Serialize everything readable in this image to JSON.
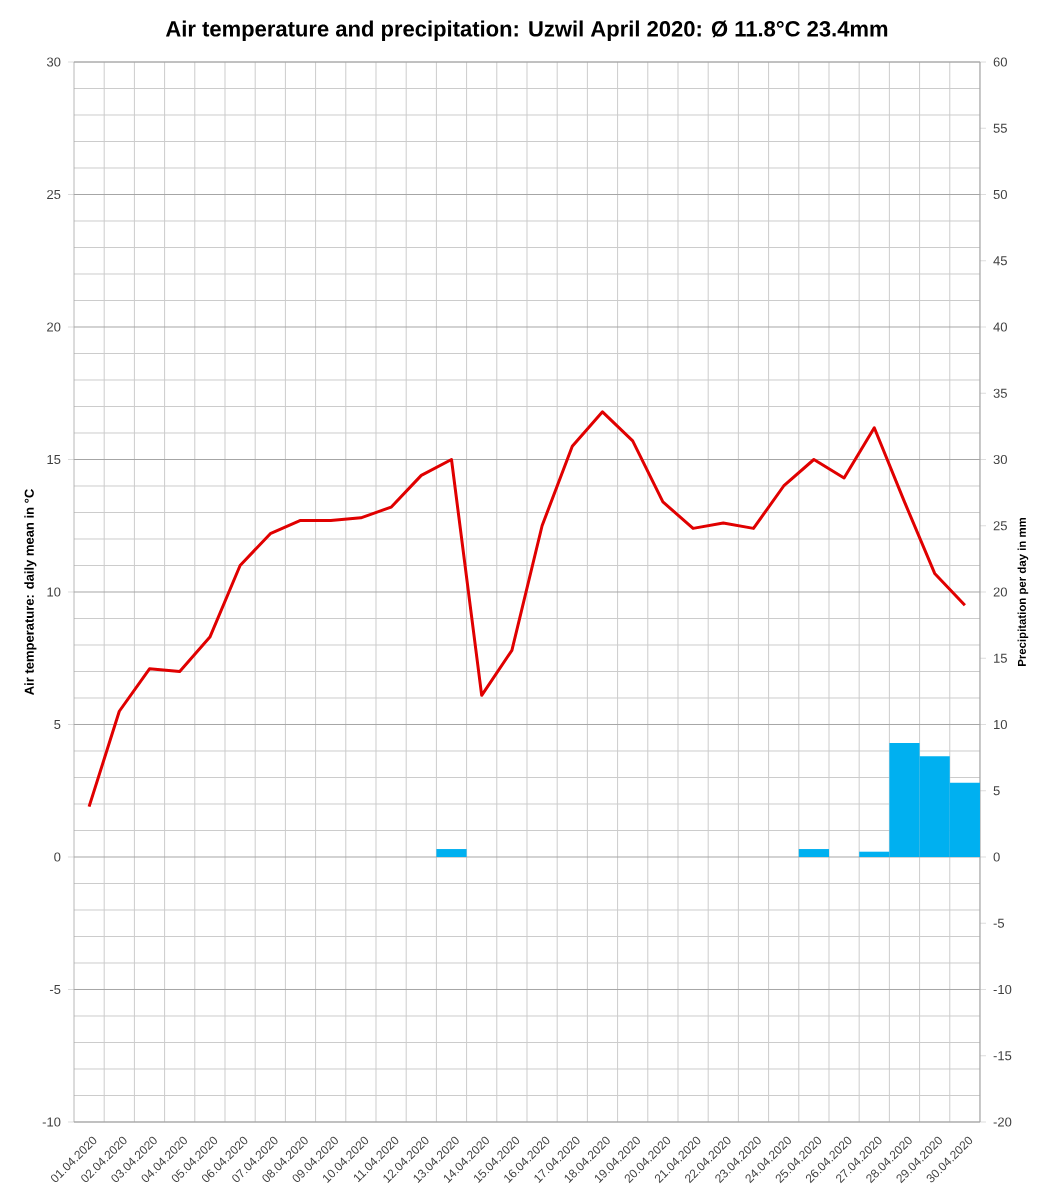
{
  "chart_data": {
    "type": "line",
    "title": "Air temperature and precipitation: Uzwil April 2020: Ø 11.8°C 23.4mm",
    "ylabel": "Air temperature: daily mean in °C",
    "y2label": "Precipitation per day in mm",
    "categories": [
      "01.04.2020",
      "02.04.2020",
      "03.04.2020",
      "04.04.2020",
      "05.04.2020",
      "06.04.2020",
      "07.04.2020",
      "08.04.2020",
      "09.04.2020",
      "10.04.2020",
      "11.04.2020",
      "12.04.2020",
      "13.04.2020",
      "14.04.2020",
      "15.04.2020",
      "16.04.2020",
      "17.04.2020",
      "18.04.2020",
      "19.04.2020",
      "20.04.2020",
      "21.04.2020",
      "22.04.2020",
      "23.04.2020",
      "24.04.2020",
      "25.04.2020",
      "26.04.2020",
      "27.04.2020",
      "28.04.2020",
      "29.04.2020",
      "30.04.2020"
    ],
    "series": [
      {
        "color": "#e00000",
        "values": [
          1.9,
          5.5,
          7.1,
          7.0,
          8.3,
          11.0,
          12.2,
          12.7,
          12.7,
          12.8,
          13.2,
          14.4,
          15.0,
          6.1,
          7.8,
          12.5,
          15.5,
          16.8,
          15.7,
          13.4,
          12.4,
          12.6,
          12.4,
          14.0,
          15.0,
          14.3,
          16.2,
          13.4,
          10.7,
          9.5
        ]
      },
      {
        "type": "bar",
        "axis": "y2",
        "color": "#00b0f0",
        "values": [
          0,
          0,
          0,
          0,
          0,
          0,
          0,
          0,
          0,
          0,
          0,
          0,
          0.6,
          0,
          0,
          0,
          0,
          0,
          0,
          0,
          0,
          0,
          0,
          0,
          0.6,
          0,
          0.4,
          8.6,
          7.6,
          5.6
        ]
      }
    ],
    "ylim": [
      -10,
      30
    ],
    "yticks": [
      -10,
      -5,
      0,
      5,
      10,
      15,
      20,
      25,
      30
    ],
    "y2lim": [
      -20,
      60
    ],
    "y2ticks": [
      -20,
      -15,
      -10,
      -5,
      0,
      5,
      10,
      15,
      20,
      25,
      30,
      35,
      40,
      45,
      50,
      55,
      60
    ],
    "grid": true,
    "marker": "none"
  }
}
